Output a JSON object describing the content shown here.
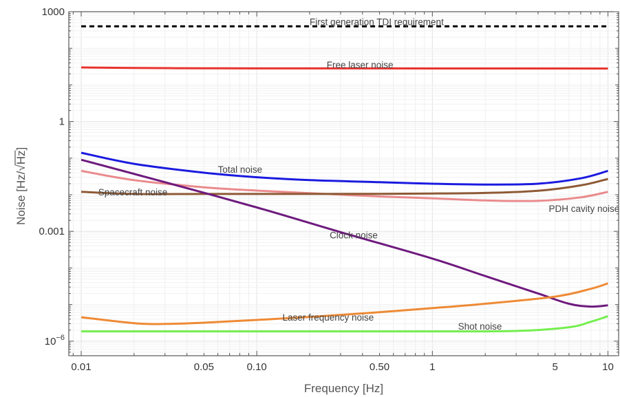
{
  "chart_data": {
    "type": "line",
    "title": "",
    "xlabel": "Frequency [Hz]",
    "ylabel_prefix": "Noise [Hz/",
    "ylabel_radicand": "Hz",
    "ylabel_suffix": "]",
    "x_scale": "log",
    "y_scale": "log",
    "xlim": [
      0.0085,
      11.5
    ],
    "ylim": [
      4e-07,
      1000
    ],
    "grid": true,
    "x_ticks": [
      {
        "value": 0.01,
        "label": "0.01"
      },
      {
        "value": 0.05,
        "label": "0.05"
      },
      {
        "value": 0.1,
        "label": "0.10"
      },
      {
        "value": 0.5,
        "label": "0.50"
      },
      {
        "value": 1,
        "label": "1"
      },
      {
        "value": 5,
        "label": "5"
      },
      {
        "value": 10,
        "label": "10"
      }
    ],
    "y_ticks": [
      {
        "value": 1e-06,
        "base": "10",
        "exp": "−6"
      },
      {
        "value": 0.001,
        "label": "0.001"
      },
      {
        "value": 1,
        "label": "1"
      },
      {
        "value": 1000,
        "label": "1000"
      }
    ],
    "series": [
      {
        "name": "First generation TDI requirement",
        "color": "#000000",
        "dashed": true,
        "x": [
          0.01,
          10
        ],
        "y": [
          400,
          400
        ],
        "label_at": {
          "x": 0.2,
          "y": 530
        }
      },
      {
        "name": "Free laser noise",
        "color": "#e8332e",
        "x": [
          0.01,
          0.02,
          0.05,
          0.1,
          1,
          10
        ],
        "y": [
          30,
          29,
          28.5,
          28.3,
          28.2,
          28
        ],
        "label_at": {
          "x": 0.25,
          "y": 36
        }
      },
      {
        "name": "Total noise",
        "color": "#1a1ae0",
        "x": [
          0.01,
          0.02,
          0.05,
          0.1,
          0.2,
          0.5,
          1,
          2,
          4,
          7,
          10
        ],
        "y": [
          0.14,
          0.07,
          0.04,
          0.03,
          0.025,
          0.022,
          0.02,
          0.019,
          0.02,
          0.028,
          0.045
        ],
        "label_at": {
          "x": 0.06,
          "y": 0.05
        }
      },
      {
        "name": "PDH cavity noise",
        "color": "#ea8a8c",
        "x": [
          0.01,
          0.02,
          0.05,
          0.1,
          0.2,
          0.5,
          1,
          2,
          4,
          7,
          10
        ],
        "y": [
          0.045,
          0.025,
          0.016,
          0.013,
          0.011,
          0.009,
          0.008,
          0.007,
          0.0068,
          0.0085,
          0.012
        ],
        "label_at": {
          "x": 4.6,
          "y": 0.0042
        }
      },
      {
        "name": "Spacecraft noise",
        "color": "#8e5a35",
        "x": [
          0.01,
          0.02,
          0.05,
          0.1,
          0.5,
          1,
          2,
          4,
          7,
          10
        ],
        "y": [
          0.012,
          0.0105,
          0.0105,
          0.0105,
          0.0106,
          0.0108,
          0.0112,
          0.0128,
          0.018,
          0.027
        ],
        "label_at": {
          "x": 0.0125,
          "y": 0.012
        }
      },
      {
        "name": "Clock noise",
        "color": "#6e1a7e",
        "x": [
          0.01,
          0.03,
          0.1,
          0.3,
          1,
          2,
          4,
          6,
          8,
          10
        ],
        "y": [
          0.09,
          0.022,
          0.0045,
          0.00095,
          0.00018,
          6e-05,
          2e-05,
          1.05e-05,
          8.8e-06,
          9.5e-06
        ],
        "label_at": {
          "x": 0.26,
          "y": 0.0008
        }
      },
      {
        "name": "Laser frequency noise",
        "color": "#ee8a35",
        "x": [
          0.01,
          0.02,
          0.03,
          0.05,
          0.1,
          0.2,
          0.5,
          1,
          2,
          5,
          8,
          10
        ],
        "y": [
          4.5e-06,
          3.1e-06,
          2.95e-06,
          3.2e-06,
          3.8e-06,
          4.6e-06,
          6.2e-06,
          8e-06,
          1.05e-05,
          1.65e-05,
          2.7e-05,
          3.8e-05
        ],
        "label_at": {
          "x": 0.14,
          "y": 4.5e-06
        }
      },
      {
        "name": "Shot noise",
        "color": "#74ee4e",
        "x": [
          0.01,
          0.1,
          1,
          3,
          6,
          8,
          10
        ],
        "y": [
          1.85e-06,
          1.85e-06,
          1.85e-06,
          1.9e-06,
          2.4e-06,
          3.4e-06,
          4.8e-06
        ],
        "label_at": {
          "x": 1.4,
          "y": 2.6e-06
        }
      }
    ]
  }
}
